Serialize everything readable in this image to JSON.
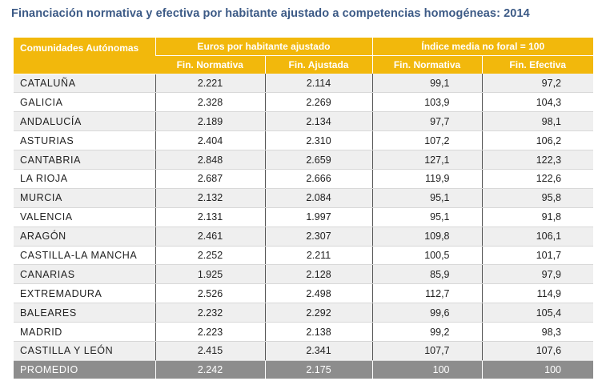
{
  "title": "Financiación normativa y efectiva por habitante ajustado a competencias homogéneas: 2014",
  "header": {
    "region_label": "Comunidades Autónomas",
    "group1": "Euros por habitante ajustado",
    "group2": "Índice media no foral = 100",
    "col1": "Fin. Normativa",
    "col2": "Fin. Ajustada",
    "col3": "Fin. Normativa",
    "col4": "Fin. Efectiva"
  },
  "rows": [
    {
      "region": "CATALUÑA",
      "fin_norm": "2.221",
      "fin_ajus": "2.114",
      "idx_norm": "99,1",
      "idx_efec": "97,2"
    },
    {
      "region": "GALICIA",
      "fin_norm": "2.328",
      "fin_ajus": "2.269",
      "idx_norm": "103,9",
      "idx_efec": "104,3"
    },
    {
      "region": "ANDALUCÍA",
      "fin_norm": "2.189",
      "fin_ajus": "2.134",
      "idx_norm": "97,7",
      "idx_efec": "98,1"
    },
    {
      "region": "ASTURIAS",
      "fin_norm": "2.404",
      "fin_ajus": "2.310",
      "idx_norm": "107,2",
      "idx_efec": "106,2"
    },
    {
      "region": "CANTABRIA",
      "fin_norm": "2.848",
      "fin_ajus": "2.659",
      "idx_norm": "127,1",
      "idx_efec": "122,3"
    },
    {
      "region": "LA RIOJA",
      "fin_norm": "2.687",
      "fin_ajus": "2.666",
      "idx_norm": "119,9",
      "idx_efec": "122,6"
    },
    {
      "region": "MURCIA",
      "fin_norm": "2.132",
      "fin_ajus": "2.084",
      "idx_norm": "95,1",
      "idx_efec": "95,8"
    },
    {
      "region": "VALENCIA",
      "fin_norm": "2.131",
      "fin_ajus": "1.997",
      "idx_norm": "95,1",
      "idx_efec": "91,8"
    },
    {
      "region": "ARAGÓN",
      "fin_norm": "2.461",
      "fin_ajus": "2.307",
      "idx_norm": "109,8",
      "idx_efec": "106,1"
    },
    {
      "region": "CASTILLA-LA MANCHA",
      "fin_norm": "2.252",
      "fin_ajus": "2.211",
      "idx_norm": "100,5",
      "idx_efec": "101,7"
    },
    {
      "region": "CANARIAS",
      "fin_norm": "1.925",
      "fin_ajus": "2.128",
      "idx_norm": "85,9",
      "idx_efec": "97,9"
    },
    {
      "region": "EXTREMADURA",
      "fin_norm": "2.526",
      "fin_ajus": "2.498",
      "idx_norm": "112,7",
      "idx_efec": "114,9"
    },
    {
      "region": "BALEARES",
      "fin_norm": "2.232",
      "fin_ajus": "2.292",
      "idx_norm": "99,6",
      "idx_efec": "105,4"
    },
    {
      "region": "MADRID",
      "fin_norm": "2.223",
      "fin_ajus": "2.138",
      "idx_norm": "99,2",
      "idx_efec": "98,3"
    },
    {
      "region": "CASTILLA Y LEÓN",
      "fin_norm": "2.415",
      "fin_ajus": "2.341",
      "idx_norm": "107,7",
      "idx_efec": "107,6"
    }
  ],
  "footer": {
    "region": "PROMEDIO",
    "fin_norm": "2.242",
    "fin_ajus": "2.175",
    "idx_norm": "100",
    "idx_efec": "100"
  },
  "colors": {
    "title": "#3c5a86",
    "header_bg": "#f2b80c",
    "footer_bg": "#8d8d8d",
    "stripe": "#efefef"
  }
}
